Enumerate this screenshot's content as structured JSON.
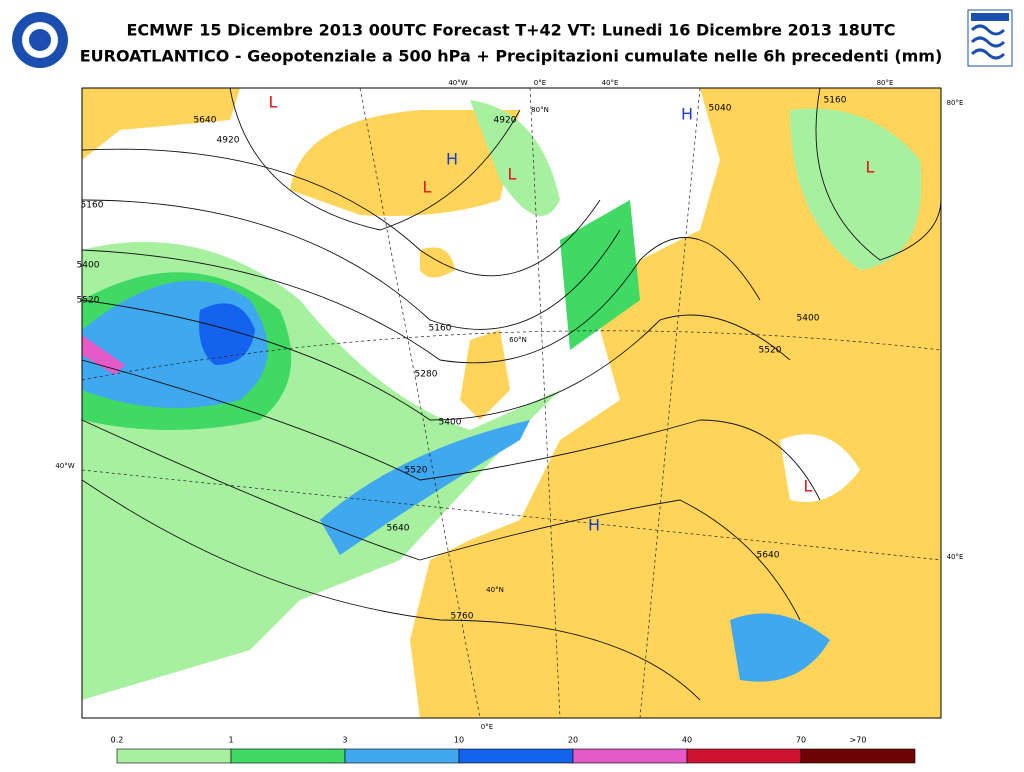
{
  "header": {
    "title": "ECMWF 15 Dicembre 2013 00UTC Forecast T+42 VT: Lunedi 16 Dicembre 2013 18UTC",
    "subtitle": "EUROATLANTICO - Geopotenziale a 500 hPa + Precipitazioni cumulate nelle 6h precedenti (mm)"
  },
  "map": {
    "graticule_labels": [
      "40°W",
      "0°E",
      "40°E",
      "80°E",
      "80°E",
      "40°W",
      "40°E",
      "0°E",
      "40°N",
      "60°N",
      "80°N"
    ],
    "pressure_centers": [
      {
        "label": "H",
        "color": "#1a3cc8"
      },
      {
        "label": "H",
        "color": "#1a3cc8"
      },
      {
        "label": "L",
        "color": "#e01010"
      },
      {
        "label": "L",
        "color": "#e01010"
      },
      {
        "label": "L",
        "color": "#e01010"
      },
      {
        "label": "L",
        "color": "#e01010"
      },
      {
        "label": "H",
        "color": "#1a3cc8"
      },
      {
        "label": "L",
        "color": "#e01010"
      }
    ],
    "contour_labels": [
      "5640",
      "4920",
      "4920",
      "5160",
      "5400",
      "5520",
      "5160",
      "5280",
      "5400",
      "5520",
      "5640",
      "5760",
      "5640",
      "5160",
      "5400",
      "5520",
      "5040"
    ]
  },
  "legend": {
    "labels": [
      "0.2",
      "1",
      "3",
      "10",
      "20",
      "40",
      "70",
      ">70"
    ],
    "colors": [
      "#a6f0a0",
      "#3fd964",
      "#3fa8ef",
      "#1463ef",
      "#e45ac6",
      "#cc1430",
      "#6e0404"
    ]
  }
}
